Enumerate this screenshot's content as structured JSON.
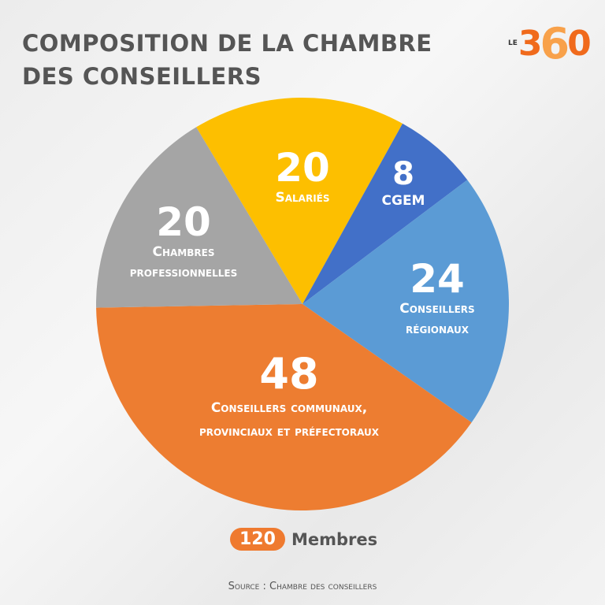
{
  "title_line1": "COMPOSITION DE LA CHAMBRE",
  "title_line2": "DES CONSEILLERS",
  "logo": {
    "le": "LE",
    "n3": "3",
    "n6": "6",
    "n0": "0"
  },
  "chart_data": {
    "type": "pie",
    "title": "Composition de la Chambre des conseillers",
    "total": 120,
    "start_angle_deg": -31,
    "slices": [
      {
        "label": "Salariés",
        "lines": [
          "Salariés"
        ],
        "value": 20,
        "color": "#FDBF00"
      },
      {
        "label": "CGEM",
        "lines": [
          "CGEM"
        ],
        "value": 8,
        "color": "#4270C8"
      },
      {
        "label": "Conseillers régionaux",
        "lines": [
          "Conseillers",
          "régionaux"
        ],
        "value": 24,
        "color": "#5B9BD5"
      },
      {
        "label": "Conseillers communaux, provinciaux et préfectoraux",
        "lines": [
          "Conseillers communaux,",
          "provinciaux et préfectoraux"
        ],
        "value": 48,
        "color": "#ED7D31"
      },
      {
        "label": "Chambres professionnelles",
        "lines": [
          "Chambres",
          "professionnelles"
        ],
        "value": 20,
        "color": "#A5A5A5"
      }
    ]
  },
  "total": {
    "value": "120",
    "label": "Membres"
  },
  "source": "Source : Chambre des conseillers"
}
